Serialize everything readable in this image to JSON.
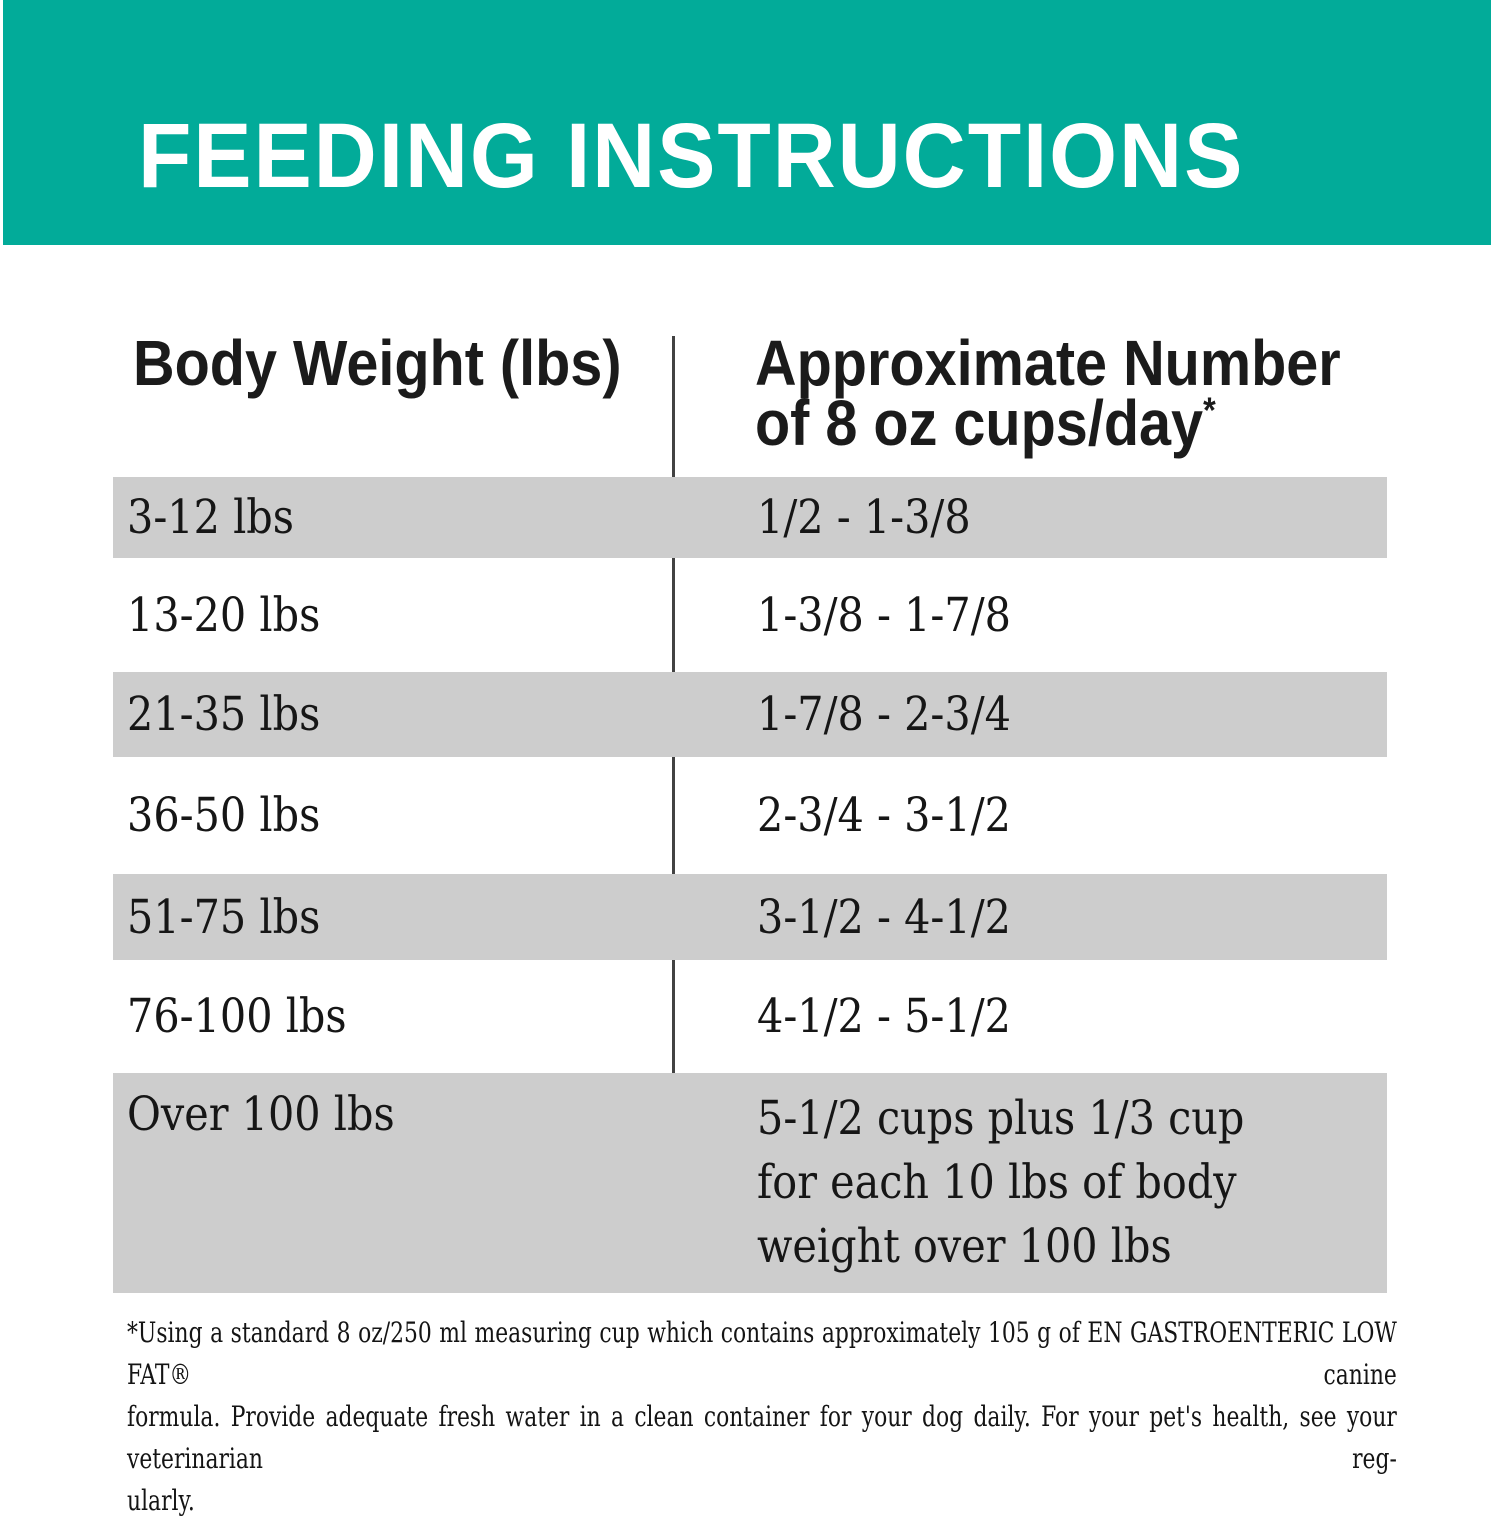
{
  "header": {
    "title": "FEEDING INSTRUCTIONS"
  },
  "table": {
    "col1_header": "Body Weight (lbs)",
    "col2_header": {
      "line1": "Approximate Number",
      "line2": "of 8 oz cups/day",
      "superscript": "*"
    },
    "rows": [
      {
        "weight": "3-12 lbs",
        "cups": "1/2 - 1-3/8"
      },
      {
        "weight": "13-20 lbs",
        "cups": "1-3/8 - 1-7/8"
      },
      {
        "weight": "21-35 lbs",
        "cups": "1-7/8 - 2-3/4"
      },
      {
        "weight": "36-50 lbs",
        "cups": "2-3/4 - 3-1/2"
      },
      {
        "weight": "51-75 lbs",
        "cups": "3-1/2 - 4-1/2"
      },
      {
        "weight": "76-100 lbs",
        "cups": "4-1/2 - 5-1/2"
      },
      {
        "weight": "Over 100 lbs",
        "cups": "5-1/2 cups plus 1/3 cup for each 10 lbs of body weight over 100 lbs",
        "cups_lines": [
          "5-1/2 cups plus 1/3 cup",
          "for each 10 lbs of body",
          "weight over 100 lbs"
        ]
      }
    ]
  },
  "footnote": {
    "text": "*Using a standard 8 oz/250 ml measuring cup which contains approximately 105 g of EN GASTROENTERIC LOW FAT® canine formula. Provide adequate fresh water in a clean container for your dog daily. For your pet's health, see your veterinarian regularly.",
    "lines": [
      "*Using a standard 8 oz/250 ml measuring cup which contains approximately 105 g of EN GASTROENTERIC LOW FAT® canine",
      "formula. Provide adequate fresh water in a clean container for your dog daily. For your pet's health, see your veterinarian reg-",
      "ularly."
    ]
  },
  "colors": {
    "banner_teal": "#02ab99",
    "row_shade_gray": "#cdcdcd",
    "text_dark": "#161616",
    "divider_dark": "#424242",
    "title_white": "#ffffff"
  }
}
